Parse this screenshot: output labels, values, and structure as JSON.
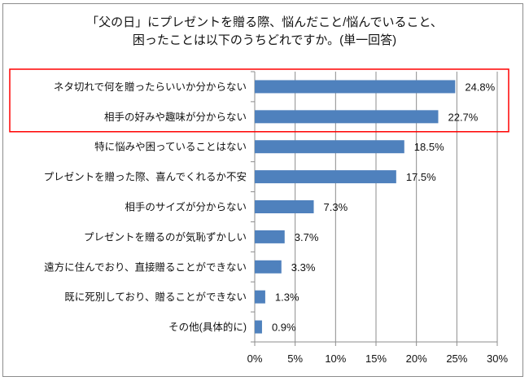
{
  "chart_data": {
    "type": "bar",
    "orientation": "horizontal",
    "title_lines": [
      "「父の日」にプレゼントを贈る際、悩んだこと/悩んでいること、",
      "困ったことは以下のうちどれですか。(単一回答)"
    ],
    "categories": [
      "ネタ切れで何を贈ったらいいか分からない",
      "相手の好みや趣味が分からない",
      "特に悩みや困っていることはない",
      "プレゼントを贈った際、喜んでくれるか不安",
      "相手のサイズが分からない",
      "プレゼントを贈るのが気恥ずかしい",
      "遠方に住んでおり、直接贈ることができない",
      "既に死別しており、贈ることができない",
      "その他(具体的に)"
    ],
    "values": [
      24.8,
      22.7,
      18.5,
      17.5,
      7.3,
      3.7,
      3.3,
      1.3,
      0.9
    ],
    "value_labels": [
      "24.8%",
      "22.7%",
      "18.5%",
      "17.5%",
      "7.3%",
      "3.7%",
      "3.3%",
      "1.3%",
      "0.9%"
    ],
    "xlim": [
      0,
      30
    ],
    "xticks": [
      0,
      5,
      10,
      15,
      20,
      25,
      30
    ],
    "xtick_labels": [
      "0%",
      "5%",
      "10%",
      "15%",
      "20%",
      "25%",
      "30%"
    ],
    "grid": true,
    "highlighted_categories": [
      0,
      1
    ],
    "bar_color": "#4f81bd",
    "highlight_color": "#ff0000"
  }
}
